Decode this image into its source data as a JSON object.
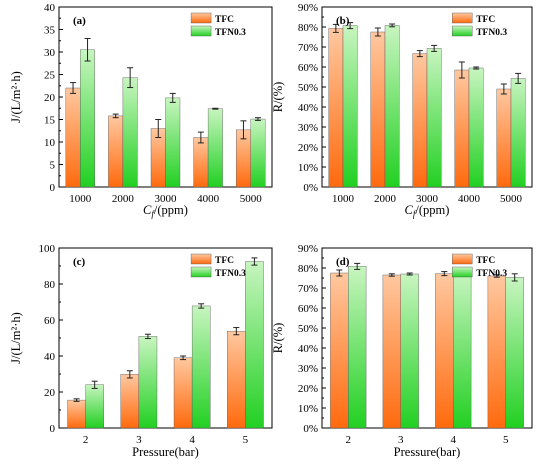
{
  "colors": {
    "TFC_top": "#ffc8a0",
    "TFC_bottom": "#ff6a0d",
    "TFN_top": "#c8f5c0",
    "TFN_bottom": "#22d022"
  },
  "chart_data": [
    {
      "type": "bar",
      "panel": "(a)",
      "categories": [
        "1000",
        "2000",
        "3000",
        "4000",
        "5000"
      ],
      "series": [
        {
          "name": "TFC",
          "values": [
            22.0,
            15.8,
            13.0,
            11.0,
            12.7
          ],
          "errors": [
            1.2,
            0.4,
            2.0,
            1.2,
            2.0
          ]
        },
        {
          "name": "TFN0.3",
          "values": [
            30.5,
            24.3,
            19.8,
            17.4,
            15.1
          ],
          "errors": [
            2.5,
            2.2,
            1.0,
            0.1,
            0.3
          ]
        }
      ],
      "xlabel": "C_f/(ppm)",
      "xlabel_main": "C",
      "xlabel_sub": "f",
      "xlabel_rest": "/(ppm)",
      "ylabel": "J/(L/m²·h)",
      "ylim": [
        0,
        40
      ],
      "yticks": [
        "0",
        "5",
        "10",
        "15",
        "20",
        "25",
        "30",
        "35",
        "40"
      ],
      "legend": "top-right"
    },
    {
      "type": "bar",
      "panel": "(b)",
      "categories": [
        "1000",
        "2000",
        "3000",
        "4000",
        "5000"
      ],
      "series": [
        {
          "name": "TFC",
          "values": [
            79.3,
            77.5,
            66.7,
            58.5,
            49.0
          ],
          "errors": [
            2.0,
            2.0,
            1.5,
            4.0,
            2.5
          ]
        },
        {
          "name": "TFN0.3",
          "values": [
            80.7,
            80.8,
            69.3,
            59.5,
            54.3
          ],
          "errors": [
            1.5,
            0.7,
            1.5,
            0.5,
            2.5
          ]
        }
      ],
      "xlabel": "C_f/(ppm)",
      "xlabel_main": "C",
      "xlabel_sub": "f",
      "xlabel_rest": "/(ppm)",
      "ylabel": "R/(%)",
      "ylim": [
        0,
        90
      ],
      "yticks": [
        "0%",
        "10%",
        "20%",
        "30%",
        "40%",
        "50%",
        "60%",
        "70%",
        "80%",
        "90%"
      ],
      "legend": "top-right"
    },
    {
      "type": "bar",
      "panel": "(c)",
      "categories": [
        "2",
        "3",
        "4",
        "5"
      ],
      "series": [
        {
          "name": "TFC",
          "values": [
            15.5,
            29.8,
            39.0,
            53.8
          ],
          "errors": [
            0.7,
            2.0,
            1.0,
            2.0
          ]
        },
        {
          "name": "TFN0.3",
          "values": [
            24.0,
            50.9,
            67.8,
            92.5
          ],
          "errors": [
            2.0,
            1.2,
            1.2,
            2.0
          ]
        }
      ],
      "xlabel": "Pressure(bar)",
      "ylabel": "J/(L/m²·h)",
      "ylim": [
        0,
        100
      ],
      "yticks": [
        "0",
        "20",
        "40",
        "60",
        "80",
        "100"
      ],
      "legend": "top-right"
    },
    {
      "type": "bar",
      "panel": "(d)",
      "categories": [
        "2",
        "3",
        "4",
        "5"
      ],
      "series": [
        {
          "name": "TFC",
          "values": [
            77.5,
            76.5,
            77.2,
            76.0
          ],
          "errors": [
            1.5,
            0.6,
            1.0,
            0.6
          ]
        },
        {
          "name": "TFN0.3",
          "values": [
            80.8,
            77.0,
            77.7,
            75.3
          ],
          "errors": [
            1.5,
            0.5,
            0.5,
            1.8
          ]
        }
      ],
      "xlabel": "Pressure(bar)",
      "ylabel": "R/(%)",
      "ylim": [
        0,
        90
      ],
      "yticks": [
        "0%",
        "10%",
        "20%",
        "30%",
        "40%",
        "50%",
        "60%",
        "70%",
        "80%",
        "90%"
      ],
      "legend": "top-right"
    }
  ]
}
